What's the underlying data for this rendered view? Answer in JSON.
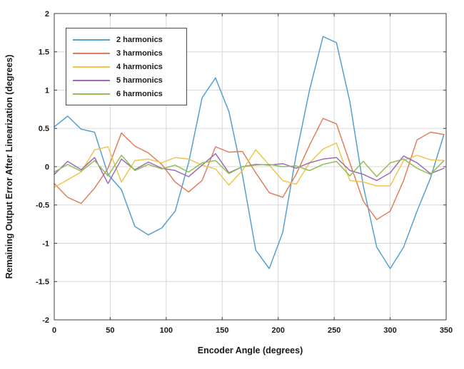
{
  "chart_data": {
    "type": "line",
    "title": "",
    "xlabel": "Encoder Angle (degrees)",
    "ylabel": "Remaining Output Error After Linearization (degrees)",
    "xlim": [
      0,
      350
    ],
    "ylim": [
      -2,
      2
    ],
    "xticks": [
      0,
      50,
      100,
      150,
      200,
      250,
      300,
      350
    ],
    "yticks": [
      -2,
      -1.5,
      -1,
      -0.5,
      0,
      0.5,
      1,
      1.5,
      2
    ],
    "grid": true,
    "legend_position": "top-left",
    "x": [
      0,
      12,
      24,
      36,
      48,
      60,
      72,
      84,
      96,
      108,
      120,
      132,
      144,
      156,
      168,
      180,
      192,
      204,
      216,
      228,
      240,
      252,
      264,
      276,
      288,
      300,
      312,
      324,
      336,
      348
    ],
    "series": [
      {
        "name": "2 harmonics",
        "color": "#559FD2",
        "values": [
          0.52,
          0.66,
          0.49,
          0.45,
          -0.1,
          -0.3,
          -0.78,
          -0.89,
          -0.8,
          -0.58,
          0.05,
          0.9,
          1.16,
          0.72,
          -0.1,
          -1.09,
          -1.33,
          -0.86,
          0.15,
          1.0,
          1.7,
          1.62,
          0.85,
          -0.25,
          -1.05,
          -1.33,
          -1.05,
          -0.58,
          -0.15,
          0.42
        ]
      },
      {
        "name": "3 harmonics",
        "color": "#E07F5B",
        "values": [
          -0.22,
          -0.4,
          -0.48,
          -0.28,
          -0.02,
          0.44,
          0.27,
          0.18,
          0.03,
          -0.2,
          -0.33,
          -0.18,
          0.26,
          0.19,
          0.2,
          -0.08,
          -0.34,
          -0.4,
          -0.1,
          0.28,
          0.63,
          0.56,
          0.05,
          -0.45,
          -0.69,
          -0.58,
          -0.18,
          0.35,
          0.45,
          0.42
        ]
      },
      {
        "name": "4 harmonics",
        "color": "#EEC64F",
        "values": [
          -0.27,
          -0.17,
          -0.07,
          0.22,
          0.26,
          -0.2,
          0.08,
          0.1,
          0.05,
          0.12,
          0.1,
          0.02,
          -0.03,
          -0.24,
          -0.05,
          0.22,
          0.02,
          -0.18,
          -0.23,
          0.05,
          0.23,
          0.31,
          -0.18,
          -0.2,
          -0.25,
          -0.25,
          0.08,
          0.15,
          0.09,
          0.08
        ]
      },
      {
        "name": "5 harmonics",
        "color": "#9D6BB4",
        "values": [
          -0.1,
          0.07,
          -0.04,
          0.12,
          -0.22,
          0.1,
          -0.04,
          0.06,
          -0.02,
          -0.05,
          -0.13,
          0.02,
          0.17,
          -0.08,
          0.0,
          0.03,
          0.02,
          0.04,
          -0.02,
          0.05,
          0.1,
          0.12,
          -0.05,
          -0.1,
          -0.18,
          -0.08,
          0.14,
          0.05,
          -0.09,
          -0.02
        ]
      },
      {
        "name": "6 harmonics",
        "color": "#90BE55",
        "values": [
          -0.07,
          0.03,
          -0.06,
          0.08,
          -0.12,
          0.15,
          -0.05,
          0.03,
          -0.03,
          0.02,
          -0.07,
          0.05,
          0.08,
          -0.09,
          0.0,
          0.02,
          0.03,
          0.0,
          0.01,
          -0.05,
          0.03,
          0.07,
          -0.12,
          0.07,
          -0.13,
          0.05,
          0.1,
          -0.02,
          -0.1,
          0.08
        ]
      }
    ]
  },
  "style": {
    "box_color": "#3f3f3f",
    "grid_color": "#d8d8d8",
    "background": "#ffffff"
  }
}
